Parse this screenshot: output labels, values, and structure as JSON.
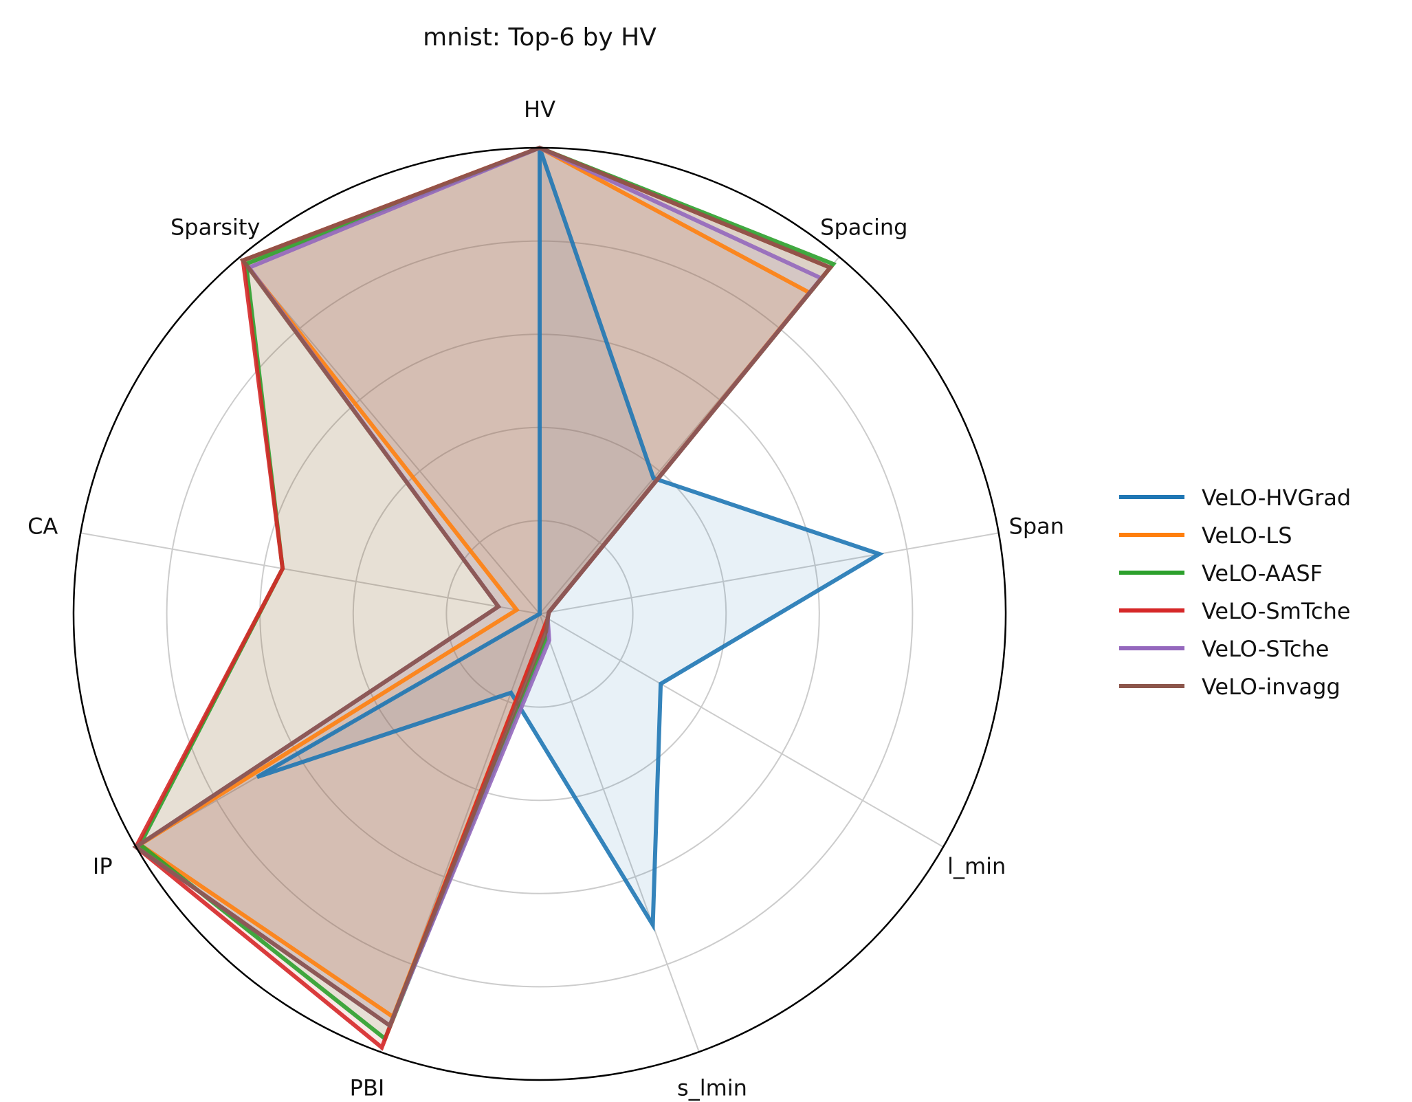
{
  "chart_data": {
    "type": "radar",
    "title": "mnist: Top-6 by HV",
    "axes": [
      "HV",
      "Spacing",
      "Span",
      "l_min",
      "s_lmin",
      "PBI",
      "IP",
      "CA",
      "Sparsity"
    ],
    "rlim": [
      0,
      1
    ],
    "grid": true,
    "legend_position": "right",
    "series": [
      {
        "name": "VeLO-HVGrad",
        "color": "#1f77b4",
        "values": [
          1.0,
          0.38,
          0.74,
          0.3,
          0.71,
          0.18,
          0.7,
          0.0,
          0.0
        ]
      },
      {
        "name": "VeLO-LS",
        "color": "#ff7f0e",
        "values": [
          1.0,
          0.9,
          0.02,
          0.02,
          0.03,
          0.92,
          0.99,
          0.05,
          0.99
        ]
      },
      {
        "name": "VeLO-AASF",
        "color": "#2ca02c",
        "values": [
          1.0,
          0.98,
          0.02,
          0.02,
          0.05,
          0.97,
          0.99,
          0.56,
          0.98
        ]
      },
      {
        "name": "VeLO-SmTche",
        "color": "#d62728",
        "values": [
          1.0,
          0.97,
          0.02,
          0.02,
          0.03,
          0.99,
          1.0,
          0.56,
          0.99
        ]
      },
      {
        "name": "VeLO-STche",
        "color": "#9467bd",
        "values": [
          1.0,
          0.94,
          0.02,
          0.02,
          0.06,
          0.94,
          1.0,
          0.09,
          0.97
        ]
      },
      {
        "name": "VeLO-invagg",
        "color": "#8c564b",
        "values": [
          1.0,
          0.97,
          0.02,
          0.02,
          0.04,
          0.94,
          1.0,
          0.09,
          0.99
        ]
      }
    ]
  }
}
